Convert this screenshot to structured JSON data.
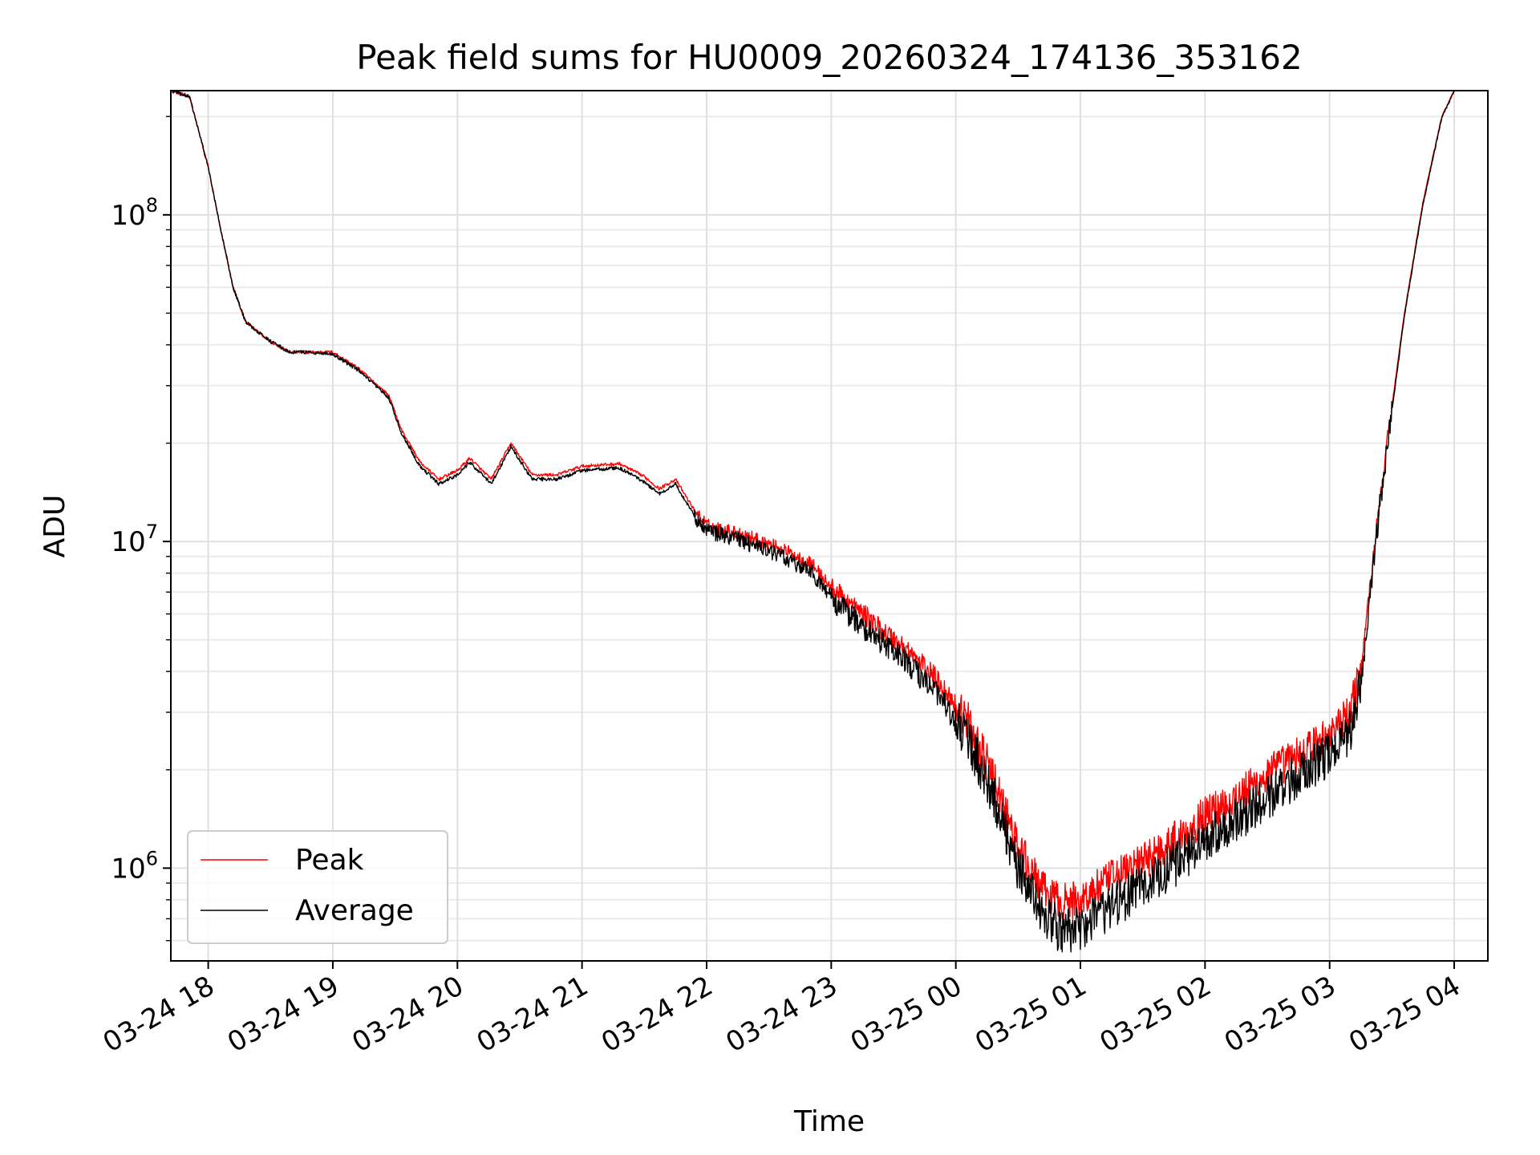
{
  "chart_data": {
    "type": "line",
    "title": "Peak field sums for HU0009_20260324_174136_353162",
    "xlabel": "Time",
    "ylabel": "ADU",
    "yscale": "log",
    "ylim": [
      520000,
      240000000
    ],
    "xlim_hours_from_03-24_00": [
      17.7,
      28.27
    ],
    "grid": true,
    "legend_position": "lower-left",
    "x_ticks": [
      {
        "label": "03-24 18",
        "hours": 18
      },
      {
        "label": "03-24 19",
        "hours": 19
      },
      {
        "label": "03-24 20",
        "hours": 20
      },
      {
        "label": "03-24 21",
        "hours": 21
      },
      {
        "label": "03-24 22",
        "hours": 22
      },
      {
        "label": "03-24 23",
        "hours": 23
      },
      {
        "label": "03-25 00",
        "hours": 24
      },
      {
        "label": "03-25 01",
        "hours": 25
      },
      {
        "label": "03-25 02",
        "hours": 26
      },
      {
        "label": "03-25 03",
        "hours": 27
      },
      {
        "label": "03-25 04",
        "hours": 28
      }
    ],
    "y_ticks": [
      {
        "base": "10",
        "exp": "6",
        "value": 1000000
      },
      {
        "base": "10",
        "exp": "7",
        "value": 10000000
      },
      {
        "base": "10",
        "exp": "8",
        "value": 100000000
      }
    ],
    "series": [
      {
        "name": "Peak",
        "color": "#ff0000",
        "noise_amplitude_log10": 0.06,
        "x_hours": [
          17.7,
          17.85,
          18.0,
          18.1,
          18.2,
          18.3,
          18.5,
          18.65,
          18.8,
          19.0,
          19.2,
          19.45,
          19.55,
          19.7,
          19.85,
          20.0,
          20.1,
          20.27,
          20.43,
          20.6,
          20.8,
          21.0,
          21.3,
          21.5,
          21.62,
          21.75,
          21.9,
          22.0,
          22.3,
          22.6,
          22.85,
          23.0,
          23.3,
          23.6,
          23.85,
          24.1,
          24.3,
          24.5,
          24.7,
          24.85,
          25.0,
          25.2,
          25.5,
          25.8,
          26.0,
          26.3,
          26.6,
          26.9,
          27.15,
          27.25,
          27.35,
          27.42,
          27.5,
          27.6,
          27.75,
          27.9,
          28.0
        ],
        "values": [
          240000000,
          230000000,
          140000000,
          90000000,
          60000000,
          47000000,
          41000000,
          38000000,
          38000000,
          38000000,
          34000000,
          28000000,
          22000000,
          17500000,
          15500000,
          16500000,
          18000000,
          15500000,
          20000000,
          16000000,
          16000000,
          17000000,
          17300000,
          15800000,
          14500000,
          15500000,
          12500000,
          11200000,
          10500000,
          9500000,
          8500000,
          7200000,
          5800000,
          4700000,
          3800000,
          2800000,
          1900000,
          1150000,
          850000,
          780000,
          800000,
          900000,
          1050000,
          1250000,
          1450000,
          1700000,
          2050000,
          2400000,
          2900000,
          4000000,
          9000000,
          15000000,
          26000000,
          50000000,
          110000000,
          200000000,
          240000000
        ]
      },
      {
        "name": "Average",
        "color": "#000000",
        "noise_amplitude_log10": 0.07,
        "x_hours": [
          17.7,
          17.85,
          18.0,
          18.1,
          18.2,
          18.3,
          18.5,
          18.65,
          18.8,
          19.0,
          19.2,
          19.45,
          19.55,
          19.7,
          19.85,
          20.0,
          20.1,
          20.27,
          20.43,
          20.6,
          20.8,
          21.0,
          21.3,
          21.5,
          21.62,
          21.75,
          21.9,
          22.0,
          22.3,
          22.6,
          22.85,
          23.0,
          23.3,
          23.6,
          23.85,
          24.1,
          24.3,
          24.5,
          24.7,
          24.85,
          25.0,
          25.2,
          25.5,
          25.8,
          26.0,
          26.3,
          26.6,
          26.9,
          27.15,
          27.25,
          27.35,
          27.42,
          27.5,
          27.6,
          27.75,
          27.9,
          28.0
        ],
        "values": [
          240000000,
          230000000,
          140000000,
          90000000,
          60000000,
          47000000,
          41000000,
          38000000,
          38000000,
          37500000,
          33500000,
          27500000,
          21500000,
          17000000,
          15000000,
          16000000,
          17500000,
          15000000,
          19500000,
          15500000,
          15500000,
          16500000,
          16800000,
          15200000,
          14000000,
          15000000,
          12000000,
          10800000,
          10000000,
          9000000,
          8000000,
          6700000,
          5300000,
          4300000,
          3400000,
          2500000,
          1650000,
          1000000,
          720000,
          640000,
          660000,
          740000,
          880000,
          1050000,
          1220000,
          1450000,
          1750000,
          2100000,
          2500000,
          3600000,
          8500000,
          14500000,
          25000000,
          49000000,
          108000000,
          198000000,
          240000000
        ]
      }
    ]
  }
}
